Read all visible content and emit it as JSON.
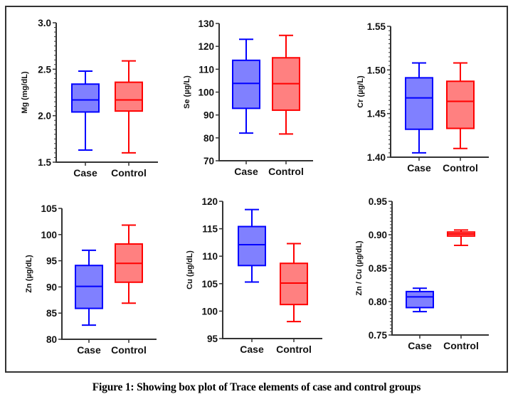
{
  "caption": "Figure 1: Showing box plot of Trace elements of case and control groups",
  "colors": {
    "case_stroke": "#0000FF",
    "case_fill": "#8080FF",
    "control_stroke": "#FF0000",
    "control_fill": "#FF8080",
    "axis": "#333333"
  },
  "chart_data": [
    {
      "type": "box",
      "ylabel": "Mg (mg/dL)",
      "categories": [
        "Case",
        "Control"
      ],
      "ylim": [
        1.5,
        3.0
      ],
      "yticks": [
        "1.5",
        "2.0",
        "2.5",
        "3.0"
      ],
      "minor_ticks": 9,
      "series": [
        {
          "name": "Case",
          "min": 1.63,
          "q1": 2.04,
          "median": 2.17,
          "q3": 2.34,
          "max": 2.48
        },
        {
          "name": "Control",
          "min": 1.6,
          "q1": 2.05,
          "median": 2.17,
          "q3": 2.36,
          "max": 2.59
        }
      ]
    },
    {
      "type": "box",
      "ylabel": "Se (µg/L)",
      "categories": [
        "Case",
        "Control"
      ],
      "ylim": [
        70,
        130
      ],
      "yticks": [
        "70",
        "80",
        "90",
        "100",
        "110",
        "120",
        "130"
      ],
      "minor_ticks": 0,
      "series": [
        {
          "name": "Case",
          "min": 82.1,
          "q1": 92.9,
          "median": 103.8,
          "q3": 113.9,
          "max": 123.1
        },
        {
          "name": "Control",
          "min": 81.7,
          "q1": 92.1,
          "median": 103.7,
          "q3": 115.0,
          "max": 124.8
        }
      ]
    },
    {
      "type": "box",
      "ylabel": "Cr (µg/L)",
      "categories": [
        "Case",
        "Control"
      ],
      "ylim": [
        1.4,
        1.55
      ],
      "yticks": [
        "1.40",
        "1.45",
        "1.50",
        "1.55"
      ],
      "minor_ticks": 9,
      "series": [
        {
          "name": "Case",
          "min": 1.405,
          "q1": 1.432,
          "median": 1.468,
          "q3": 1.491,
          "max": 1.508
        },
        {
          "name": "Control",
          "min": 1.41,
          "q1": 1.433,
          "median": 1.464,
          "q3": 1.487,
          "max": 1.508
        }
      ]
    },
    {
      "type": "box",
      "ylabel": "Zn (µg/dL)",
      "categories": [
        "Case",
        "Control"
      ],
      "ylim": [
        80,
        105
      ],
      "yticks": [
        "80",
        "85",
        "90",
        "95",
        "100",
        "105"
      ],
      "minor_ticks": 0,
      "series": [
        {
          "name": "Case",
          "min": 82.7,
          "q1": 85.9,
          "median": 90.1,
          "q3": 94.1,
          "max": 97.0
        },
        {
          "name": "Control",
          "min": 86.9,
          "q1": 90.9,
          "median": 94.5,
          "q3": 98.2,
          "max": 101.8
        }
      ]
    },
    {
      "type": "box",
      "ylabel": "Cu (µg/dL)",
      "categories": [
        "Case",
        "Control"
      ],
      "ylim": [
        95,
        120
      ],
      "yticks": [
        "95",
        "100",
        "105",
        "110",
        "115",
        "120"
      ],
      "minor_ticks": 0,
      "series": [
        {
          "name": "Case",
          "min": 105.3,
          "q1": 108.3,
          "median": 112.1,
          "q3": 115.4,
          "max": 118.5
        },
        {
          "name": "Control",
          "min": 98.1,
          "q1": 101.2,
          "median": 105.1,
          "q3": 108.7,
          "max": 112.3
        }
      ]
    },
    {
      "type": "box",
      "ylabel": "Zn / Cu (µg/dL)",
      "categories": [
        "Case",
        "Control"
      ],
      "ylim": [
        0.75,
        0.95
      ],
      "yticks": [
        "0.75",
        "0.80",
        "0.85",
        "0.90",
        "0.95"
      ],
      "minor_ticks": 9,
      "series": [
        {
          "name": "Case",
          "min": 0.785,
          "q1": 0.791,
          "median": 0.807,
          "q3": 0.815,
          "max": 0.82
        },
        {
          "name": "Control",
          "min": 0.884,
          "q1": 0.898,
          "median": 0.901,
          "q3": 0.904,
          "max": 0.907
        }
      ]
    }
  ]
}
